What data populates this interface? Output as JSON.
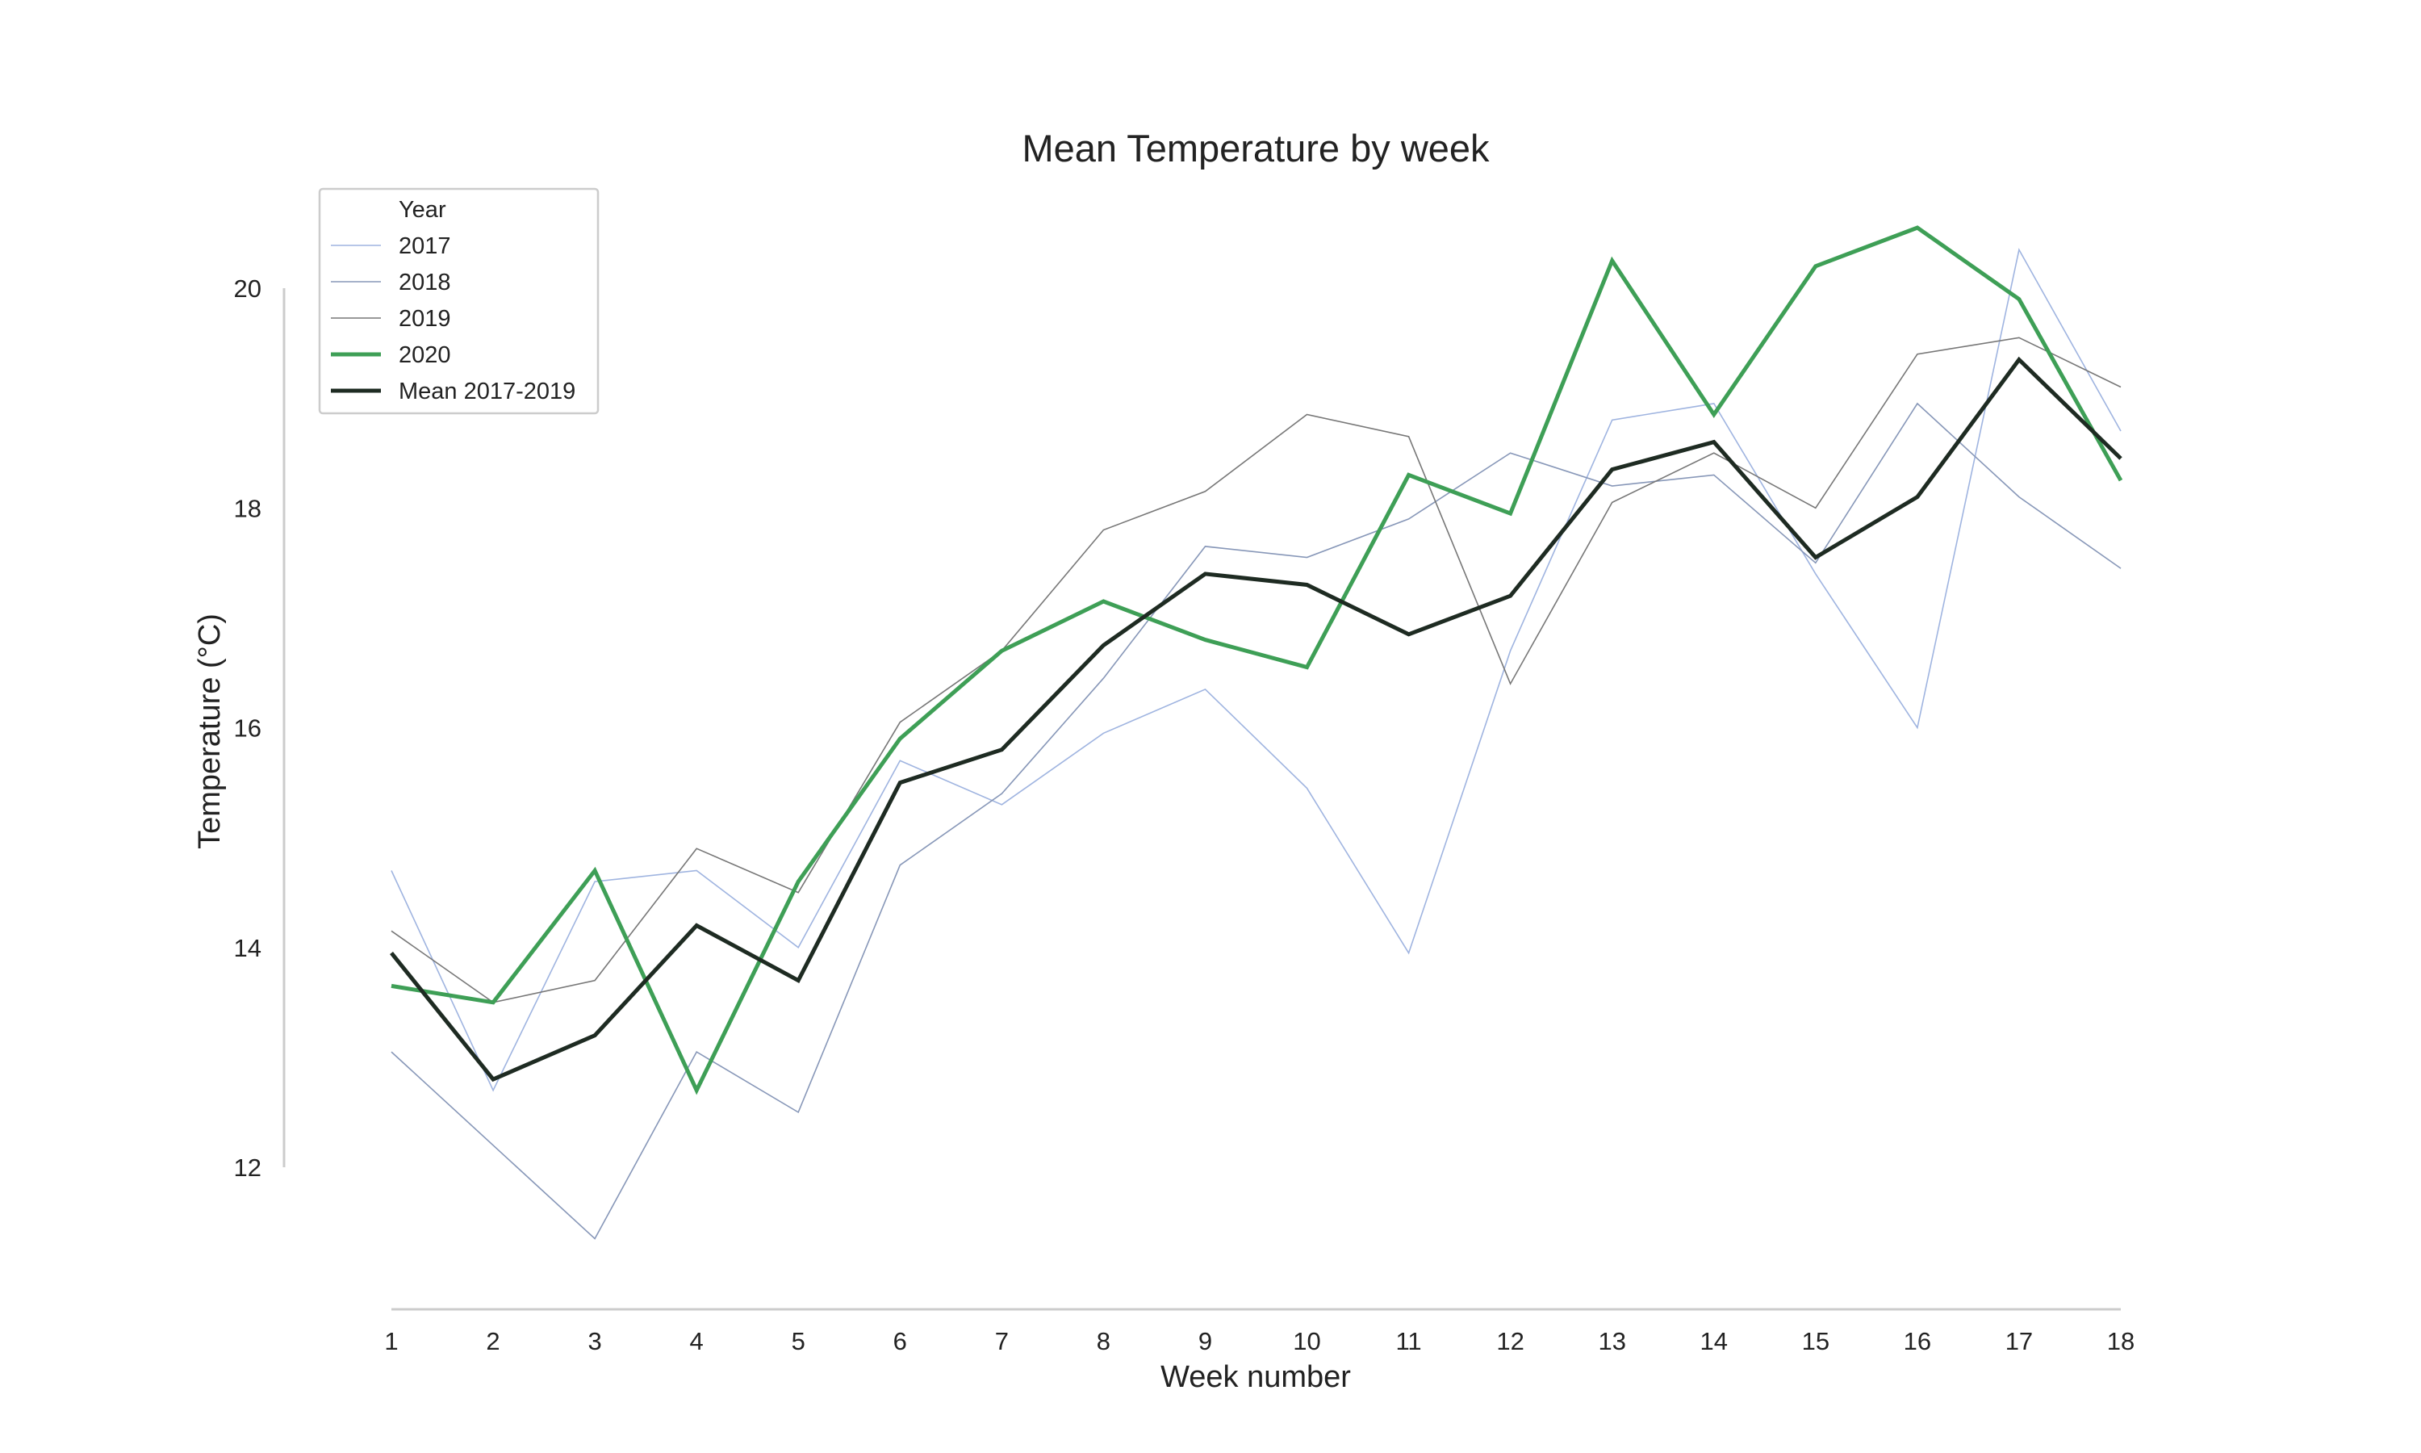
{
  "chart_data": {
    "type": "line",
    "title": "Mean Temperature by week",
    "xlabel": "Week number",
    "ylabel": "Temperature (°C)",
    "x": [
      1,
      2,
      3,
      4,
      5,
      6,
      7,
      8,
      9,
      10,
      11,
      12,
      13,
      14,
      15,
      16,
      17,
      18
    ],
    "xlim": [
      1,
      18
    ],
    "ylim": [
      11,
      21
    ],
    "yticks": [
      12,
      14,
      16,
      18,
      20
    ],
    "grid": false,
    "legend": {
      "title": "Year",
      "placement": "top-left"
    },
    "series": [
      {
        "name": "2017",
        "color": "#9fb4e0",
        "values": [
          14.7,
          12.7,
          14.6,
          14.7,
          14.0,
          15.7,
          15.3,
          15.95,
          16.35,
          15.45,
          13.95,
          16.7,
          18.8,
          18.95,
          17.4,
          16.0,
          20.35,
          18.7
        ]
      },
      {
        "name": "2018",
        "color": "#8797b8",
        "values": [
          13.05,
          12.2,
          11.35,
          13.05,
          12.5,
          14.75,
          15.4,
          16.45,
          17.65,
          17.55,
          17.9,
          18.5,
          18.2,
          18.3,
          17.5,
          18.95,
          18.1,
          17.45
        ]
      },
      {
        "name": "2019",
        "color": "#777777",
        "values": [
          14.15,
          13.5,
          13.7,
          14.9,
          14.5,
          16.05,
          16.7,
          17.8,
          18.15,
          18.85,
          18.65,
          16.4,
          18.05,
          18.5,
          18.0,
          19.4,
          19.55,
          19.1
        ]
      },
      {
        "name": "2020",
        "color": "#3e9f56",
        "values": [
          13.65,
          13.5,
          14.7,
          12.7,
          14.6,
          15.9,
          16.7,
          17.15,
          16.8,
          16.55,
          18.3,
          17.95,
          20.25,
          18.85,
          20.2,
          20.55,
          19.9,
          18.25
        ]
      },
      {
        "name": "Mean 2017-2019",
        "color": "#1e2b22",
        "values": [
          13.95,
          12.8,
          13.2,
          14.2,
          13.7,
          15.5,
          15.8,
          16.75,
          17.4,
          17.3,
          16.85,
          17.2,
          18.35,
          18.6,
          17.55,
          18.1,
          19.35,
          18.45
        ]
      }
    ]
  }
}
